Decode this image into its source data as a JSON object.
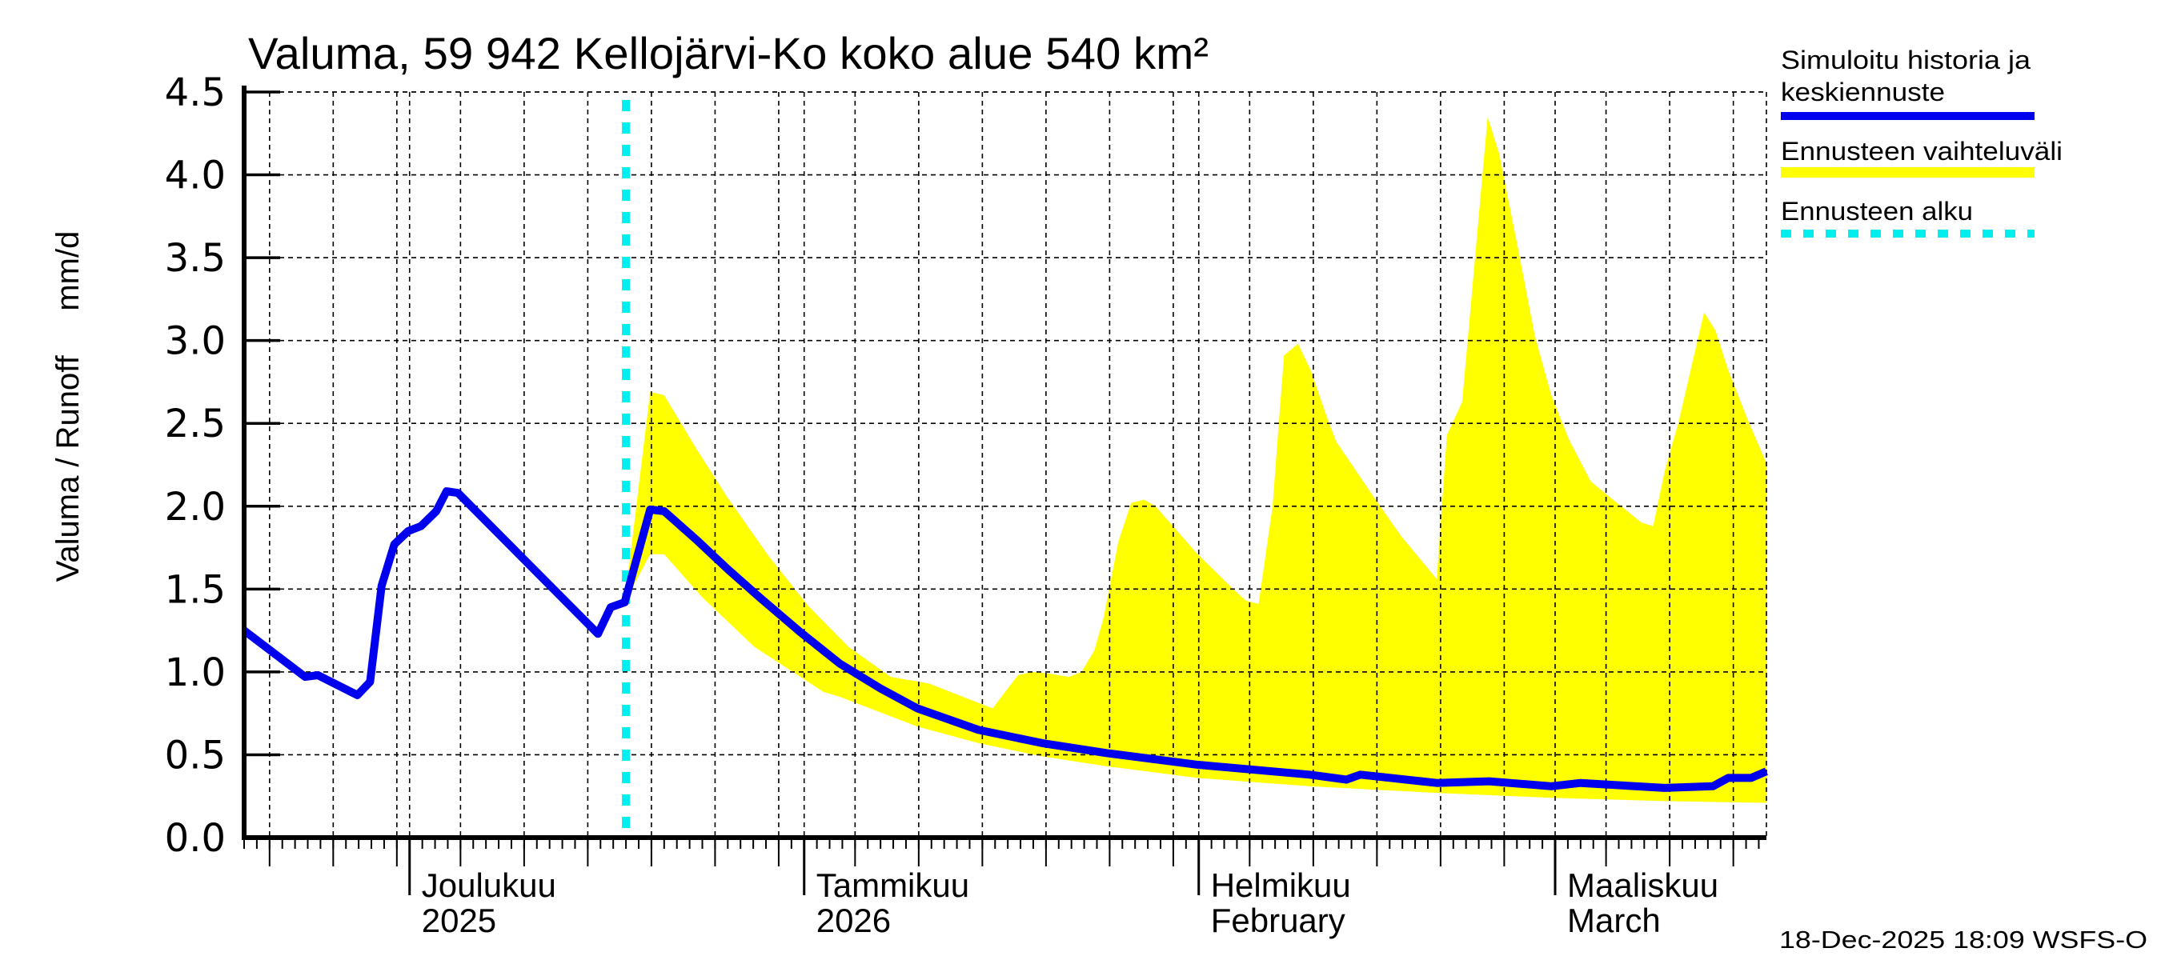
{
  "chart_data": {
    "type": "area",
    "title": "Valuma, 59 942 Kellojärvi-Ko koko alue 540 km²",
    "ylabel": "Valuma / Runoff     mm/d",
    "xlabel": "",
    "ylim": [
      0.0,
      4.5
    ],
    "yticks": [
      "0.0",
      "0.5",
      "1.0",
      "1.5",
      "2.0",
      "2.5",
      "3.0",
      "3.5",
      "4.0",
      "4.5"
    ],
    "ytick_values": [
      0,
      0.5,
      1.0,
      1.5,
      2.0,
      2.5,
      3.0,
      3.5,
      4.0,
      4.5
    ],
    "x_unit": "days since 2025-12-01",
    "xlim": [
      -13.0,
      106.6
    ],
    "grid": true,
    "month_ticks": [
      {
        "day": 0,
        "line1": "Joulukuu",
        "line2": "2025"
      },
      {
        "day": 31,
        "line1": "Tammikuu",
        "line2": "2026"
      },
      {
        "day": 62,
        "line1": "Helmikuu",
        "line2": "February"
      },
      {
        "day": 90,
        "line1": "Maaliskuu",
        "line2": "March"
      }
    ],
    "grid_days": [
      -11,
      -6,
      -1,
      4,
      9,
      14,
      19,
      24,
      29,
      35,
      40,
      45,
      50,
      55,
      60,
      66,
      71,
      76,
      81,
      86,
      94,
      99,
      104
    ],
    "forecast_start_day": 17,
    "series": [
      {
        "name": "Simuloitu historia ja keskiennuste",
        "kind": "line",
        "color": "#0000ee",
        "x": [
          -13.0,
          -8.2,
          -7.2,
          -4.1,
          -3.1,
          -2.2,
          -1.2,
          -0.1,
          0.9,
          2.1,
          2.9,
          3.8,
          14.8,
          15.8,
          16.9,
          18.9,
          20.0,
          22.5,
          25.0,
          27.5,
          30.7,
          33.8,
          37.0,
          39.9,
          44.7,
          49.7,
          54.8,
          61.9,
          70.7,
          73.6,
          74.7,
          80.7,
          84.8,
          89.7,
          92.0,
          98.6,
          102.4,
          103.6,
          105.4,
          106.6
        ],
        "y": [
          1.25,
          0.97,
          0.98,
          0.86,
          0.94,
          1.52,
          1.77,
          1.85,
          1.88,
          1.97,
          2.09,
          2.08,
          1.23,
          1.39,
          1.42,
          1.98,
          1.97,
          1.8,
          1.62,
          1.45,
          1.24,
          1.05,
          0.9,
          0.78,
          0.65,
          0.57,
          0.51,
          0.44,
          0.38,
          0.35,
          0.38,
          0.33,
          0.34,
          0.31,
          0.33,
          0.3,
          0.31,
          0.36,
          0.36,
          0.4
        ]
      },
      {
        "name": "Ennusteen vaihteluväli",
        "kind": "band",
        "color": "#ffff00",
        "upper_x": [
          16.9,
          18.9,
          20.0,
          22.5,
          25.0,
          28.2,
          31.3,
          34.5,
          37.8,
          40.8,
          45.8,
          47.8,
          48.9,
          50.2,
          51.8,
          52.8,
          53.8,
          54.5,
          55.7,
          56.7,
          57.7,
          58.6,
          61.8,
          64.7,
          65.7,
          66.7,
          67.8,
          68.3,
          68.7,
          69.8,
          70.8,
          72.2,
          72.8,
          75.8,
          77.9,
          80.7,
          81.5,
          82.7,
          84.7,
          85.6,
          87.2,
          88.4,
          89.7,
          91.1,
          92.8,
          94.7,
          96.8,
          97.7,
          98.6,
          99.7,
          101.7,
          102.6,
          103.6,
          105.2,
          106.6
        ],
        "upper_y": [
          1.42,
          2.69,
          2.67,
          2.35,
          2.05,
          1.7,
          1.4,
          1.15,
          0.97,
          0.93,
          0.78,
          0.98,
          1.0,
          0.99,
          0.97,
          1.0,
          1.13,
          1.32,
          1.79,
          2.02,
          2.04,
          2.0,
          1.72,
          1.5,
          1.43,
          1.41,
          2.0,
          2.51,
          2.91,
          2.98,
          2.82,
          2.51,
          2.39,
          2.05,
          1.82,
          1.56,
          2.43,
          2.63,
          4.35,
          4.13,
          3.51,
          3.03,
          2.67,
          2.4,
          2.15,
          2.03,
          1.9,
          1.88,
          2.21,
          2.51,
          3.17,
          3.06,
          2.82,
          2.51,
          2.26
        ],
        "lower_x": [
          16.9,
          18.9,
          20.0,
          23.0,
          27.1,
          32.5,
          33.8,
          39.9,
          44.7,
          49.7,
          54.8,
          61.9,
          70.7,
          80.7,
          89.7,
          98.6,
          106.6
        ],
        "lower_y": [
          1.42,
          1.71,
          1.71,
          1.45,
          1.15,
          0.88,
          0.85,
          0.67,
          0.57,
          0.49,
          0.43,
          0.36,
          0.31,
          0.27,
          0.24,
          0.22,
          0.21
        ]
      },
      {
        "name": "Ennusteen alku",
        "kind": "vline",
        "color": "#00eeee",
        "x": 17
      }
    ],
    "legend": {
      "placement": "right",
      "entries": [
        {
          "line1": "Simuloitu historia ja",
          "line2": "keskiennuste",
          "color": "#0000ee",
          "style": "solid"
        },
        {
          "line1": "Ennusteen vaihteluväli",
          "line2": "",
          "color": "#ffff00",
          "style": "band"
        },
        {
          "line1": "Ennusteen alku",
          "line2": "",
          "color": "#00eeee",
          "style": "dashed"
        }
      ]
    },
    "footer": "18-Dec-2025 18:09 WSFS-O"
  }
}
